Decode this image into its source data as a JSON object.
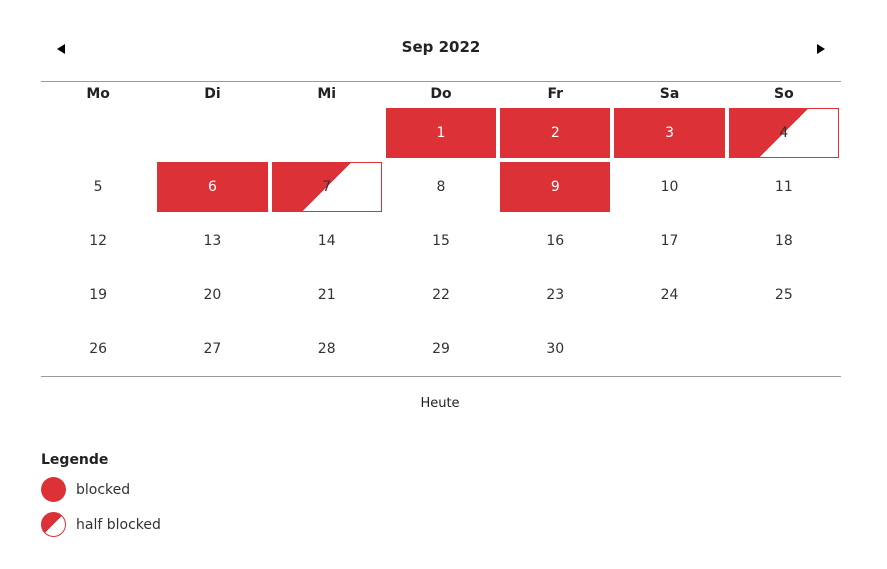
{
  "calendar": {
    "title": "Sep 2022",
    "weekdays": [
      "Mo",
      "Di",
      "Mi",
      "Do",
      "Fr",
      "Sa",
      "So"
    ],
    "leading_empty": 3,
    "days": [
      {
        "day": "1",
        "status": "blocked"
      },
      {
        "day": "2",
        "status": "blocked"
      },
      {
        "day": "3",
        "status": "blocked"
      },
      {
        "day": "4",
        "status": "half"
      },
      {
        "day": "5",
        "status": "free"
      },
      {
        "day": "6",
        "status": "blocked"
      },
      {
        "day": "7",
        "status": "half"
      },
      {
        "day": "8",
        "status": "free"
      },
      {
        "day": "9",
        "status": "blocked"
      },
      {
        "day": "10",
        "status": "free"
      },
      {
        "day": "11",
        "status": "free"
      },
      {
        "day": "12",
        "status": "free"
      },
      {
        "day": "13",
        "status": "free"
      },
      {
        "day": "14",
        "status": "free"
      },
      {
        "day": "15",
        "status": "free"
      },
      {
        "day": "16",
        "status": "free"
      },
      {
        "day": "17",
        "status": "free"
      },
      {
        "day": "18",
        "status": "free"
      },
      {
        "day": "19",
        "status": "free"
      },
      {
        "day": "20",
        "status": "free"
      },
      {
        "day": "21",
        "status": "free"
      },
      {
        "day": "22",
        "status": "free"
      },
      {
        "day": "23",
        "status": "free"
      },
      {
        "day": "24",
        "status": "free"
      },
      {
        "day": "25",
        "status": "free"
      },
      {
        "day": "26",
        "status": "free"
      },
      {
        "day": "27",
        "status": "free"
      },
      {
        "day": "28",
        "status": "free"
      },
      {
        "day": "29",
        "status": "free"
      },
      {
        "day": "30",
        "status": "free"
      }
    ],
    "today_label": "Heute"
  },
  "legend": {
    "title": "Legende",
    "blocked_label": "blocked",
    "half_label": "half blocked"
  },
  "colors": {
    "blocked": "#dc3237",
    "text": "#222222"
  }
}
